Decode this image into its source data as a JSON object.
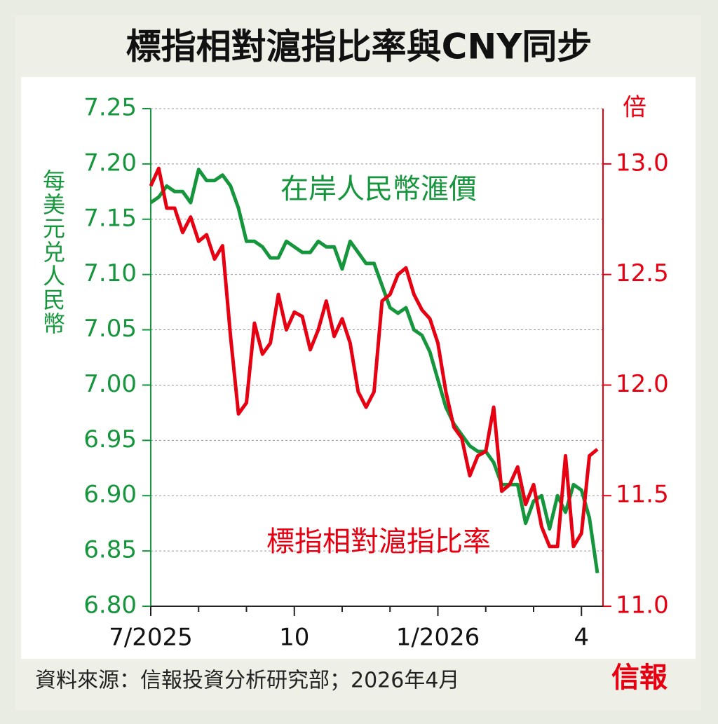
{
  "chart_data": {
    "type": "line",
    "title": "標指相對滬指比率與CNY同步",
    "y_label": "每美元兑人民幣",
    "y2_label": "倍",
    "source": "資料來源：信報投資分析研究部；2026年4月",
    "logo": "信報",
    "categories": [
      "7/2025",
      null,
      null,
      null,
      null,
      null,
      null,
      null,
      null,
      null,
      null,
      null,
      null,
      null,
      null,
      null,
      null,
      null,
      "10",
      null,
      null,
      null,
      null,
      null,
      null,
      null,
      null,
      null,
      null,
      null,
      null,
      null,
      null,
      null,
      null,
      null,
      "1/2026",
      null,
      null,
      null,
      null,
      null,
      null,
      null,
      null,
      null,
      null,
      null,
      null,
      null,
      null,
      null,
      null,
      null,
      "4",
      null,
      null
    ],
    "ylim": [
      6.8,
      7.25
    ],
    "yticks": [
      {
        "value": 6.8,
        "label": "6.80"
      },
      6.85,
      {
        "value": 6.9,
        "label": "6.90"
      },
      6.95,
      {
        "value": 7.0,
        "label": "7.00"
      },
      7.05,
      {
        "value": 7.1,
        "label": "7.10"
      },
      7.15,
      {
        "value": 7.2,
        "label": "7.20"
      },
      7.25
    ],
    "y2lim": [
      11.0,
      13.25
    ],
    "y2ticks": [
      {
        "value": 11.0,
        "label": "11.0"
      },
      11.5,
      {
        "value": 12.0,
        "label": "12.0"
      },
      12.5,
      {
        "value": 13.0,
        "label": "13.0"
      }
    ],
    "grid": true,
    "series": [
      {
        "name": "在岸人民幣滙價",
        "color": "#16963c",
        "values": [
          7.165,
          7.17,
          7.18,
          7.175,
          7.175,
          7.165,
          7.195,
          7.185,
          7.185,
          7.19,
          7.18,
          7.16,
          7.13,
          7.13,
          7.125,
          7.115,
          7.115,
          7.13,
          7.125,
          7.12,
          7.12,
          7.13,
          7.125,
          7.125,
          7.105,
          7.13,
          7.12,
          7.11,
          7.11,
          7.09,
          7.07,
          7.065,
          7.07,
          7.05,
          7.045,
          7.03,
          7.005,
          6.98,
          6.965,
          6.955,
          6.945,
          6.94,
          6.94,
          6.93,
          6.91,
          6.91,
          6.91,
          6.875,
          6.895,
          6.9,
          6.87,
          6.9,
          6.885,
          6.91,
          6.905,
          6.88,
          6.83
        ]
      },
      {
        "name": "標指相對滬指比率",
        "color": "#e60012",
        "axis": "y2",
        "values": [
          12.9,
          12.98,
          12.8,
          12.8,
          12.69,
          12.76,
          12.65,
          12.68,
          12.57,
          12.63,
          12.22,
          11.87,
          11.92,
          12.28,
          12.14,
          12.19,
          12.41,
          12.25,
          12.33,
          12.31,
          12.16,
          12.25,
          12.38,
          12.22,
          12.3,
          12.19,
          11.97,
          11.9,
          11.97,
          12.38,
          12.41,
          12.5,
          12.53,
          12.41,
          12.34,
          12.3,
          12.19,
          11.97,
          11.81,
          11.76,
          11.59,
          11.68,
          11.7,
          11.9,
          11.52,
          11.55,
          11.63,
          11.46,
          11.55,
          11.36,
          11.27,
          11.27,
          11.68,
          11.27,
          11.33,
          11.68,
          11.71
        ]
      }
    ]
  }
}
